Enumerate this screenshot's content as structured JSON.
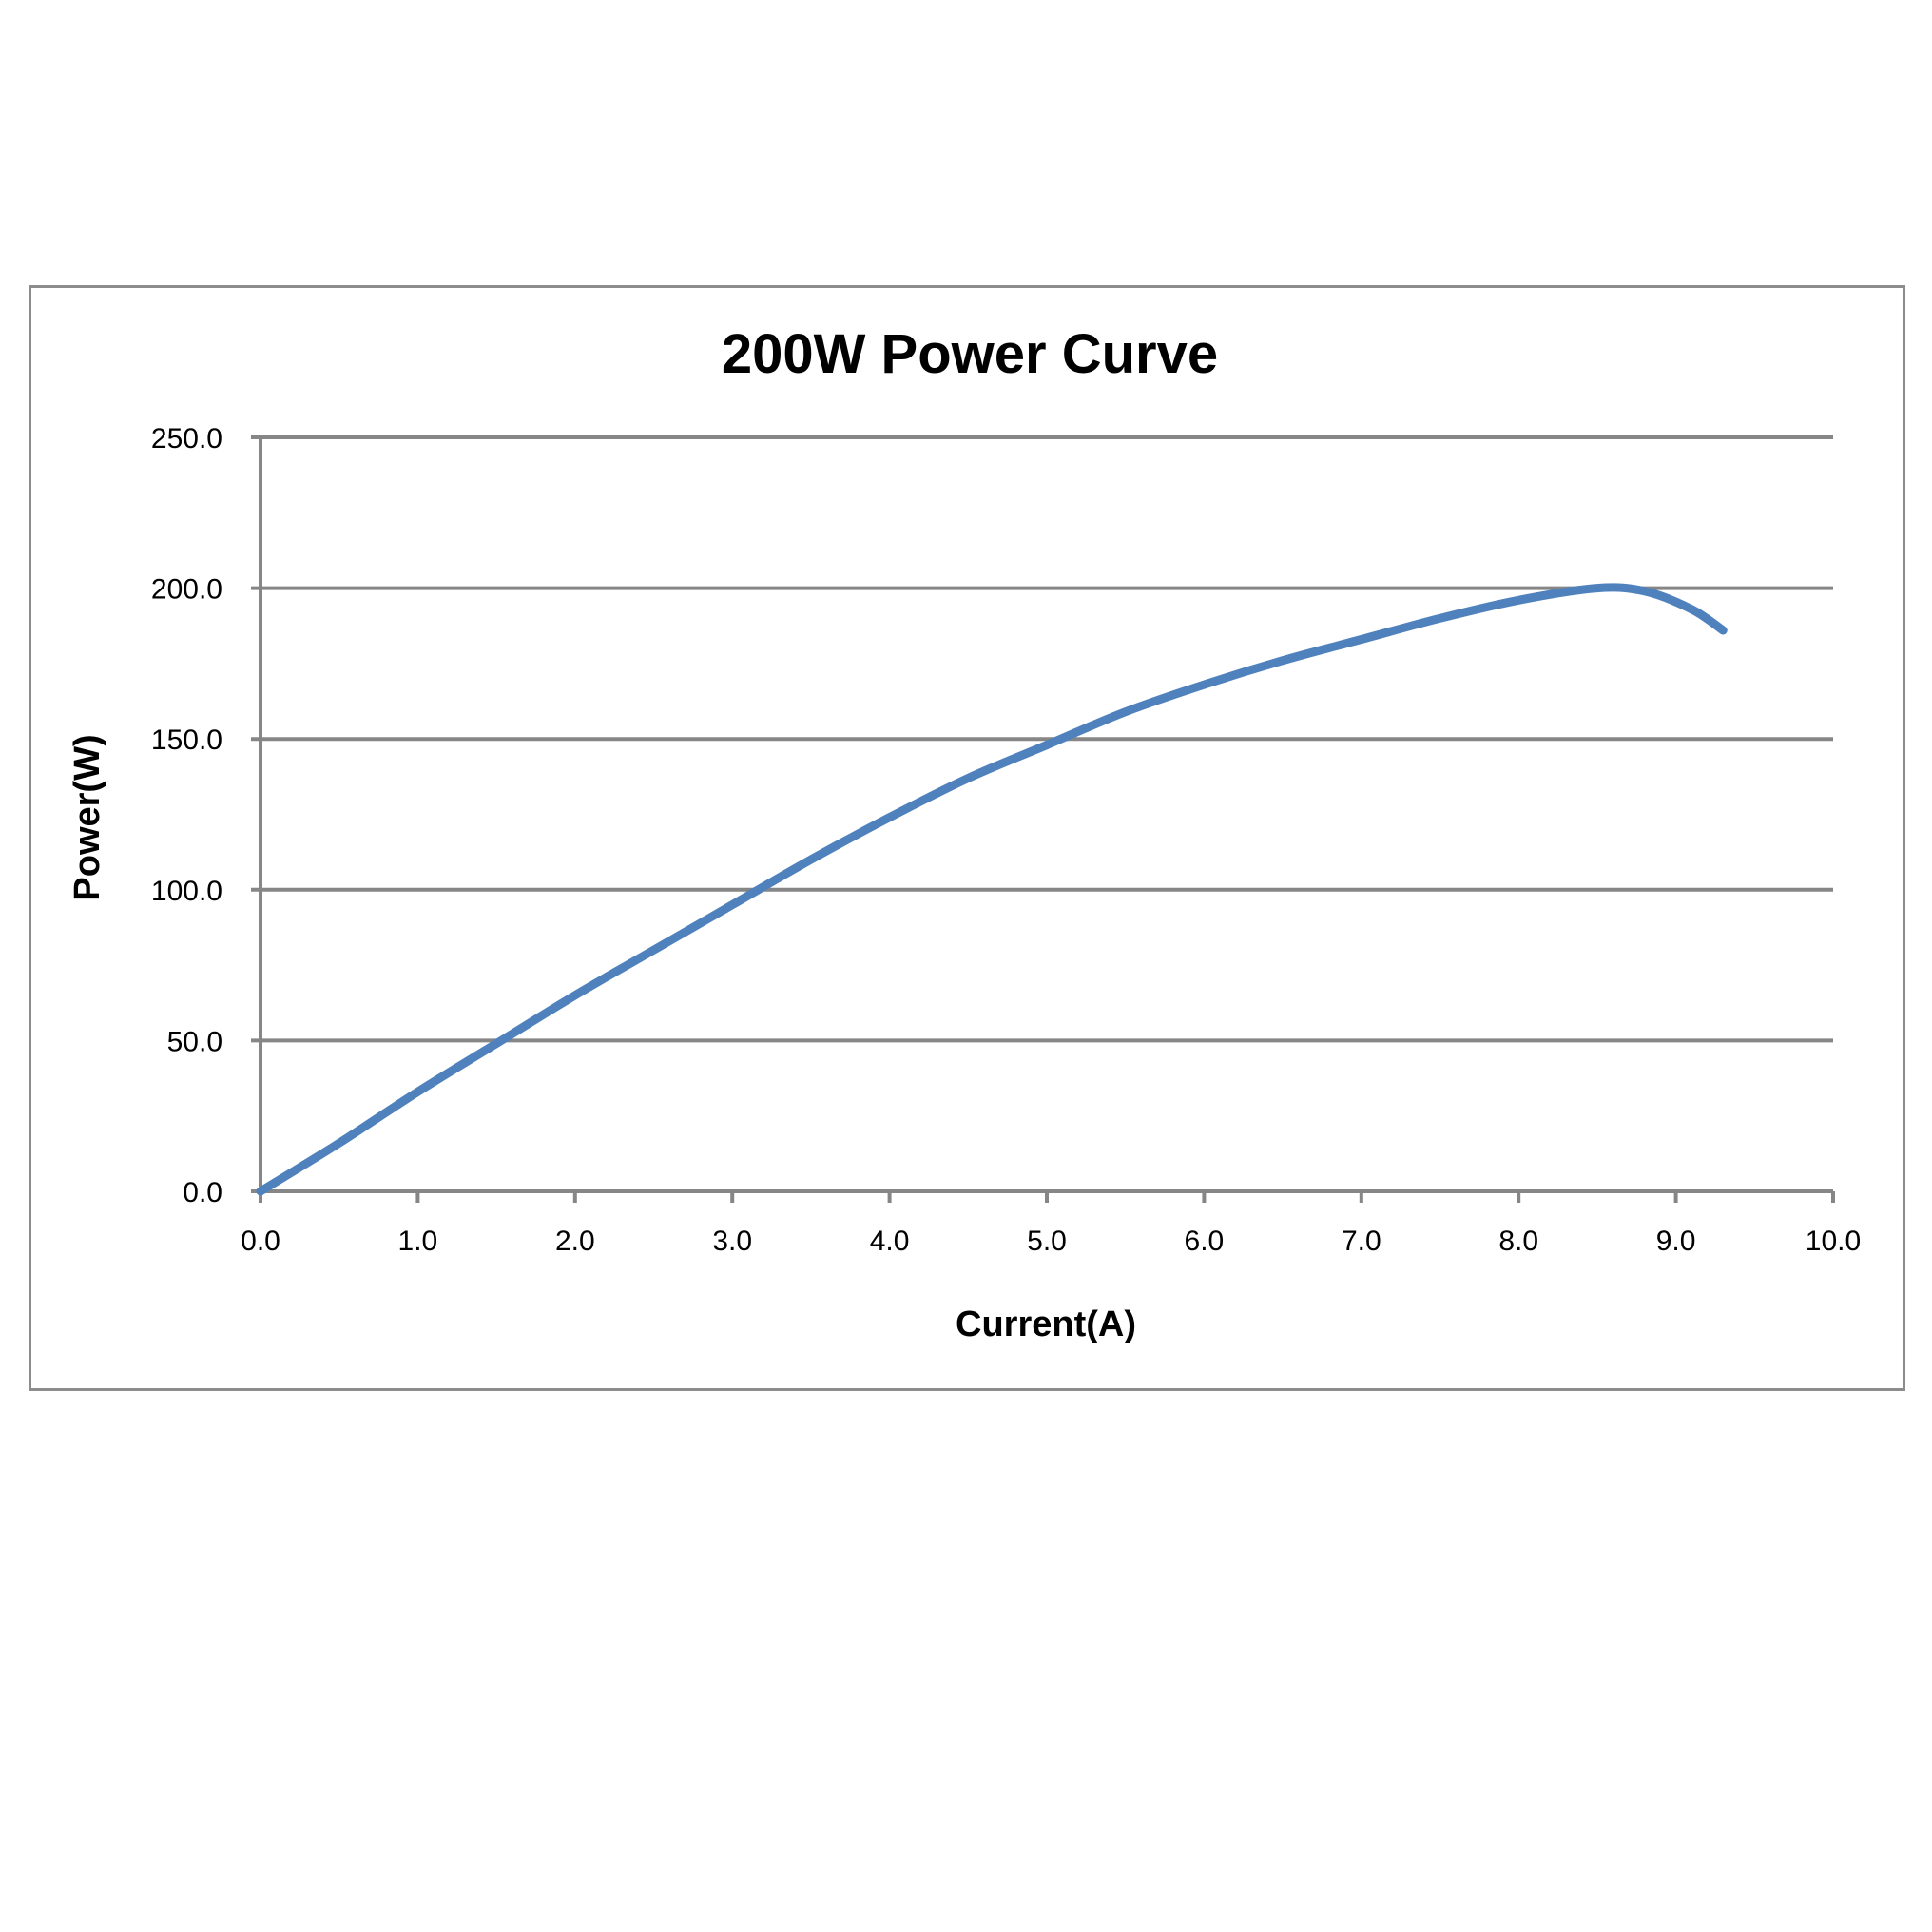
{
  "chart_data": {
    "type": "line",
    "title": "200W Power Curve",
    "xlabel": "Current(A)",
    "ylabel": "Power(W)",
    "xlim": [
      0,
      10
    ],
    "ylim": [
      0,
      250
    ],
    "x_ticks": [
      "0.0",
      "1.0",
      "2.0",
      "3.0",
      "4.0",
      "5.0",
      "6.0",
      "7.0",
      "8.0",
      "9.0",
      "10.0"
    ],
    "y_ticks": [
      "0.0",
      "50.0",
      "100.0",
      "150.0",
      "200.0",
      "250.0"
    ],
    "grid": true,
    "legend": "none",
    "series": [
      {
        "color": "#4f81bd",
        "x": [
          0.0,
          0.5,
          1.0,
          1.5,
          2.0,
          2.5,
          3.0,
          3.5,
          4.0,
          4.5,
          5.0,
          5.5,
          6.0,
          6.5,
          7.0,
          7.5,
          8.0,
          8.5,
          8.8,
          9.1,
          9.3
        ],
        "y": [
          0,
          16,
          33,
          49,
          65,
          80,
          95,
          110,
          124,
          137,
          148,
          159,
          168,
          176,
          183,
          190,
          196,
          200,
          199,
          193,
          186
        ]
      }
    ]
  }
}
